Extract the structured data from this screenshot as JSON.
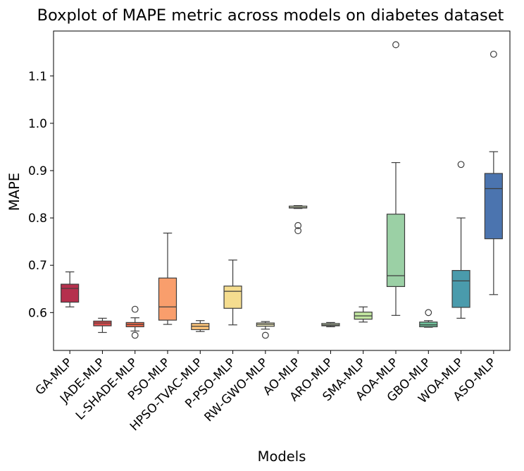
{
  "chart_data": {
    "type": "boxplot",
    "title": "Boxplot of MAPE metric across models on diabetes dataset",
    "xlabel": "Models",
    "ylabel": "MAPE",
    "ylim": [
      0.52,
      1.195
    ],
    "yticks": [
      0.6,
      0.7,
      0.8,
      0.9,
      1.0,
      1.1
    ],
    "ytick_labels": [
      "0.6",
      "0.7",
      "0.8",
      "0.9",
      "1.0",
      "1.1"
    ],
    "grid": false,
    "legend": "none",
    "categories": [
      "GA-MLP",
      "JADE-MLP",
      "L-SHADE-MLP",
      "PSO-MLP",
      "HPSO-TVAC-MLP",
      "P-PSO-MLP",
      "RW-GWO-MLP",
      "AO-MLP",
      "ARO-MLP",
      "SMA-MLP",
      "AOA-MLP",
      "GBO-MLP",
      "WOA-MLP",
      "ASO-MLP"
    ],
    "boxes": [
      {
        "model": "GA-MLP",
        "whisker_low": 0.612,
        "q1": 0.622,
        "median": 0.651,
        "q3": 0.66,
        "whisker_high": 0.686,
        "outliers": [],
        "color": "#b5304d"
      },
      {
        "model": "JADE-MLP",
        "whisker_low": 0.558,
        "q1": 0.572,
        "median": 0.578,
        "q3": 0.582,
        "whisker_high": 0.588,
        "outliers": [],
        "color": "#dc4a4c"
      },
      {
        "model": "L-SHADE-MLP",
        "whisker_low": 0.561,
        "q1": 0.57,
        "median": 0.575,
        "q3": 0.579,
        "whisker_high": 0.589,
        "outliers": [
          0.607,
          0.552
        ],
        "color": "#ef6849"
      },
      {
        "model": "PSO-MLP",
        "whisker_low": 0.575,
        "q1": 0.584,
        "median": 0.612,
        "q3": 0.673,
        "whisker_high": 0.768,
        "outliers": [],
        "color": "#f99e6c"
      },
      {
        "model": "HPSO-TVAC-MLP",
        "whisker_low": 0.56,
        "q1": 0.564,
        "median": 0.571,
        "q3": 0.577,
        "whisker_high": 0.583,
        "outliers": [],
        "color": "#fdc479"
      },
      {
        "model": "P-PSO-MLP",
        "whisker_low": 0.574,
        "q1": 0.609,
        "median": 0.645,
        "q3": 0.656,
        "whisker_high": 0.711,
        "outliers": [],
        "color": "#f5dd8f"
      },
      {
        "model": "RW-GWO-MLP",
        "whisker_low": 0.565,
        "q1": 0.571,
        "median": 0.575,
        "q3": 0.578,
        "whisker_high": 0.581,
        "outliers": [
          0.552
        ],
        "color": "#f4f0c0"
      },
      {
        "model": "AO-MLP",
        "whisker_low": 0.82,
        "q1": 0.821,
        "median": 0.822,
        "q3": 0.825,
        "whisker_high": 0.826,
        "outliers": [
          0.784,
          0.773
        ],
        "color": "#ecf6ce"
      },
      {
        "model": "ARO-MLP",
        "whisker_low": 0.57,
        "q1": 0.572,
        "median": 0.574,
        "q3": 0.577,
        "whisker_high": 0.579,
        "outliers": [],
        "color": "#e1f2cb"
      },
      {
        "model": "SMA-MLP",
        "whisker_low": 0.58,
        "q1": 0.586,
        "median": 0.593,
        "q3": 0.601,
        "whisker_high": 0.612,
        "outliers": [],
        "color": "#c1e6a0"
      },
      {
        "model": "AOA-MLP",
        "whisker_low": 0.594,
        "q1": 0.655,
        "median": 0.678,
        "q3": 0.808,
        "whisker_high": 0.917,
        "outliers": [
          1.166
        ],
        "color": "#9bd0a5"
      },
      {
        "model": "GBO-MLP",
        "whisker_low": 0.569,
        "q1": 0.57,
        "median": 0.574,
        "q3": 0.58,
        "whisker_high": 0.583,
        "outliers": [
          0.6
        ],
        "color": "#6ebe98"
      },
      {
        "model": "WOA-MLP",
        "whisker_low": 0.588,
        "q1": 0.611,
        "median": 0.667,
        "q3": 0.689,
        "whisker_high": 0.8,
        "outliers": [
          0.913
        ],
        "color": "#4a9bac"
      },
      {
        "model": "ASO-MLP",
        "whisker_low": 0.638,
        "q1": 0.756,
        "median": 0.862,
        "q3": 0.894,
        "whisker_high": 0.94,
        "outliers": [
          1.146
        ],
        "color": "#4b74af"
      }
    ]
  }
}
